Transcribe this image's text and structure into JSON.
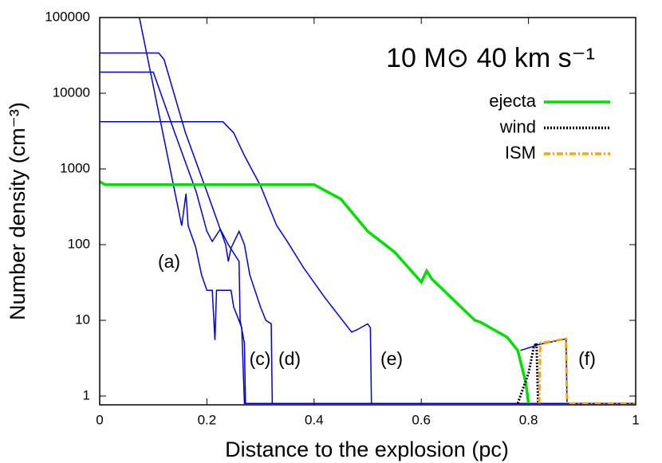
{
  "chart_data": {
    "type": "line",
    "title": "10 M⊙  40 km s⁻¹",
    "xlabel": "Distance to the explosion (pc)",
    "ylabel": "Number density  (cm⁻³)",
    "log_y": true,
    "xlim": [
      0,
      1
    ],
    "ylim": [
      0.766,
      100000
    ],
    "xticks": [
      0,
      0.2,
      0.4,
      0.6,
      0.8,
      1
    ],
    "yticks": [
      1,
      10,
      100,
      1000,
      10000,
      100000
    ],
    "legend": "upper right",
    "annotations": [
      "(a)",
      "(c)",
      "(d)",
      "(e)",
      "(f)"
    ],
    "series": [
      {
        "color": "#0000cc",
        "x": [
          0.074,
          0.153,
          0.161,
          0.165,
          0.179,
          0.19,
          0.2,
          0.21,
          0.215,
          0.218,
          0.245,
          0.25,
          0.265,
          0.27,
          0.3
        ],
        "values": [
          100000,
          178,
          470,
          178,
          93,
          40,
          25,
          25,
          5.5,
          25,
          25,
          15,
          8,
          0.8,
          0.8
        ]
      },
      {
        "color": "#0000cc",
        "x": [
          0,
          0.11,
          0.12,
          0.16,
          0.2,
          0.22,
          0.235,
          0.24,
          0.245,
          0.26,
          0.27,
          0.28,
          0.3,
          0.31,
          0.32,
          0.322,
          0.4
        ],
        "values": [
          34000,
          34000,
          28000,
          3000,
          500,
          200,
          100,
          60,
          90,
          150,
          100,
          40,
          15,
          10,
          9,
          0.8,
          0.8
        ]
      },
      {
        "color": "#0000cc",
        "x": [
          0,
          0.1,
          0.14,
          0.18,
          0.2,
          0.21,
          0.225,
          0.24,
          0.26,
          0.262,
          0.27,
          0.272,
          1
        ],
        "values": [
          19000,
          19000,
          3000,
          500,
          150,
          110,
          160,
          100,
          60,
          10,
          5,
          0.8,
          0.8
        ]
      },
      {
        "color": "#0000cc",
        "x": [
          0,
          0.23,
          0.25,
          0.27,
          0.3,
          0.33,
          0.35,
          0.38,
          0.42,
          0.47,
          0.48,
          0.5,
          0.505,
          0.507,
          0.6
        ],
        "values": [
          4200,
          4200,
          3000,
          1500,
          600,
          180,
          110,
          50,
          20,
          7,
          7.5,
          9,
          8,
          0.8,
          0.8
        ]
      },
      {
        "color": "#0000cc",
        "x": [
          0.785,
          0.82,
          0.87,
          0.872,
          1
        ],
        "values": [
          4,
          4.8,
          5.7,
          0.8,
          0.8
        ]
      },
      {
        "name": "ejecta",
        "color": "#00dd00",
        "dash": "none",
        "x": [
          0,
          0.01,
          0.4,
          0.45,
          0.5,
          0.55,
          0.6,
          0.61,
          0.62,
          0.7,
          0.71,
          0.76,
          0.78,
          0.795,
          0.8
        ],
        "values": [
          680,
          620,
          620,
          400,
          150,
          80,
          32,
          45,
          35,
          10,
          9.5,
          6,
          4,
          1.5,
          0.8
        ]
      },
      {
        "name": "wind",
        "color": "#000000",
        "dash": "2,2",
        "x": [
          0.78,
          0.8,
          0.81,
          0.815,
          0.818
        ],
        "values": [
          0.8,
          2,
          4.5,
          5,
          0.8
        ]
      },
      {
        "name": "ISM",
        "color": "#ffa500",
        "dash": "8,3,2,3",
        "x": [
          0.82,
          0.822,
          0.87,
          0.872,
          1
        ],
        "values": [
          0.8,
          5,
          5.7,
          0.8,
          0.8
        ]
      }
    ]
  }
}
